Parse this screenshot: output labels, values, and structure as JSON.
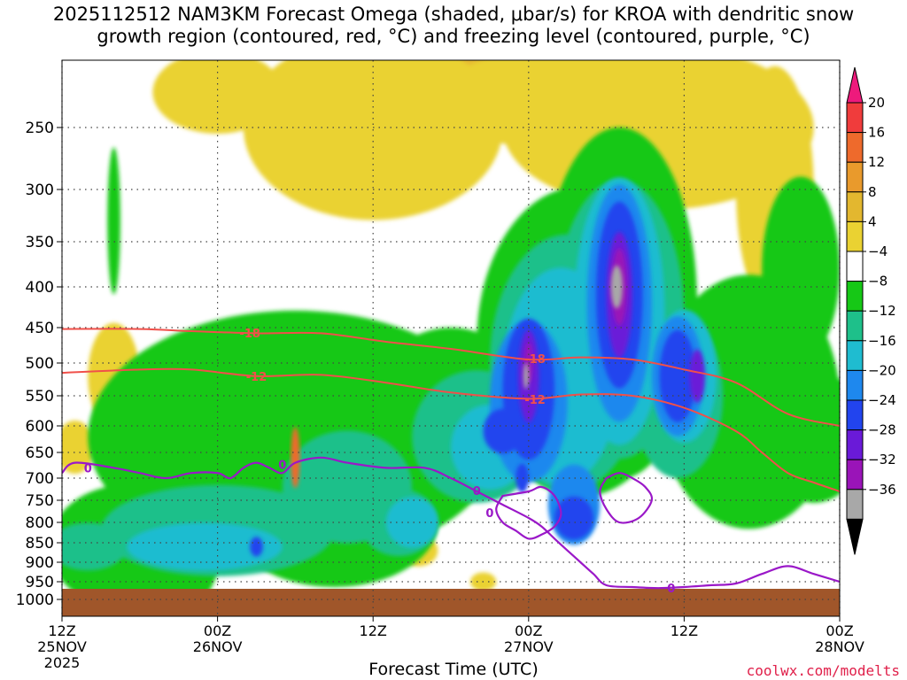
{
  "chart_data": {
    "type": "heatmap",
    "title_line1": "2025112512 NAM3KM Forecast Omega (shaded, μbar/s) for KROA with dendritic snow",
    "title_line2": "growth region (contoured, red, °C) and freezing level (contoured, purple, °C)",
    "xlabel": "Forecast Time (UTC)",
    "ylabel": "",
    "x_range_hours": [
      0,
      60
    ],
    "x_ticks": [
      {
        "hour": 0,
        "label1": "12Z",
        "label2": "25NOV",
        "label3": "2025"
      },
      {
        "hour": 12,
        "label1": "00Z",
        "label2": "26NOV",
        "label3": ""
      },
      {
        "hour": 24,
        "label1": "12Z",
        "label2": "",
        "label3": ""
      },
      {
        "hour": 36,
        "label1": "00Z",
        "label2": "27NOV",
        "label3": ""
      },
      {
        "hour": 48,
        "label1": "12Z",
        "label2": "",
        "label3": ""
      },
      {
        "hour": 60,
        "label1": "00Z",
        "label2": "28NOV",
        "label3": ""
      }
    ],
    "y_range_hpa": [
      200,
      1050
    ],
    "y_ticks": [
      250,
      300,
      350,
      400,
      450,
      500,
      550,
      600,
      650,
      700,
      750,
      800,
      850,
      900,
      950,
      1000
    ],
    "y_tick_labels": [
      "250",
      "300",
      "350",
      "400",
      "450",
      "500",
      "550",
      "600",
      "650",
      "700",
      "750",
      "800",
      "850",
      "900",
      "950",
      "1000"
    ],
    "colorbar": {
      "labels": [
        "20",
        "16",
        "12",
        "8",
        "4",
        "−4",
        "−8",
        "−12",
        "−16",
        "−20",
        "−24",
        "−28",
        "−32",
        "−36"
      ],
      "levels": [
        20,
        16,
        12,
        8,
        4,
        -4,
        -8,
        -12,
        -16,
        -20,
        -24,
        -28,
        -32,
        -36
      ],
      "colors": [
        "#f03c3c",
        "#ee6a2c",
        "#e99a2c",
        "#e3b72f",
        "#ead232",
        "#ffffff",
        "#16c816",
        "#1ec08a",
        "#1fbcd0",
        "#1e88ee",
        "#2244ee",
        "#6a1ad8",
        "#9a14b8",
        "#a8a8a8",
        "#000000"
      ],
      "top_color": "#ee1a7c"
    },
    "omega_shading": [
      {
        "level": 8,
        "color": "#e6b830",
        "blobs": [
          [
            34.5,
            210,
            4.5,
            55
          ],
          [
            22.5,
            225,
            2,
            40
          ],
          [
            40,
            215,
            3,
            40
          ],
          [
            54.5,
            300,
            1,
            60
          ]
        ]
      },
      {
        "level": 4,
        "color": "#ead232",
        "blobs": [
          [
            12,
            225,
            5,
            35
          ],
          [
            24,
            250,
            10,
            100
          ],
          [
            37,
            230,
            8,
            40
          ],
          [
            46,
            250,
            12,
            80
          ],
          [
            55,
            300,
            3,
            120
          ],
          [
            4,
            520,
            2,
            80
          ],
          [
            1,
            640,
            1.5,
            50
          ],
          [
            27.5,
            870,
            1.5,
            40
          ],
          [
            32.5,
            950,
            1,
            25
          ]
        ]
      },
      {
        "level": -4,
        "color": "#16c816",
        "blobs": [
          [
            40,
            470,
            8,
            200
          ],
          [
            43,
            420,
            6,
            200
          ],
          [
            30,
            560,
            6,
            120
          ],
          [
            18,
            620,
            16,
            220
          ],
          [
            53,
            560,
            7,
            200
          ],
          [
            58,
            620,
            4,
            120
          ],
          [
            5,
            860,
            6,
            150
          ],
          [
            10,
            700,
            3,
            250
          ],
          [
            21,
            800,
            8,
            150
          ],
          [
            4,
            330,
            0.5,
            70
          ],
          [
            57,
            380,
            3,
            100
          ]
        ]
      },
      {
        "level": -8,
        "color": "#1ec08a",
        "blobs": [
          [
            39,
            500,
            6,
            180
          ],
          [
            43,
            440,
            5,
            170
          ],
          [
            32,
            620,
            5,
            120
          ],
          [
            22,
            720,
            5,
            120
          ],
          [
            12,
            820,
            9,
            110
          ],
          [
            2,
            860,
            3,
            60
          ],
          [
            26,
            800,
            3,
            80
          ],
          [
            47.5,
            550,
            3.5,
            130
          ]
        ]
      },
      {
        "level": -12,
        "color": "#1fbcd0",
        "blobs": [
          [
            38.5,
            520,
            4.5,
            160
          ],
          [
            43,
            430,
            3.5,
            160
          ],
          [
            33,
            640,
            3,
            80
          ],
          [
            11,
            860,
            6,
            60
          ],
          [
            27,
            800,
            2,
            60
          ],
          [
            48,
            520,
            2.5,
            100
          ]
        ]
      },
      {
        "level": -16,
        "color": "#1e88ee",
        "blobs": [
          [
            36,
            560,
            3,
            130
          ],
          [
            43,
            420,
            2.5,
            140
          ],
          [
            39.5,
            760,
            2,
            90
          ],
          [
            47.5,
            520,
            2,
            90
          ]
        ]
      },
      {
        "level": -20,
        "color": "#2244ee",
        "blobs": [
          [
            36,
            540,
            2,
            110
          ],
          [
            43,
            410,
            1.8,
            110
          ],
          [
            39.5,
            790,
            1.5,
            50
          ],
          [
            47.5,
            520,
            1.4,
            70
          ],
          [
            15,
            860,
            0.5,
            25
          ],
          [
            34,
            610,
            1.5,
            40
          ],
          [
            35.5,
            700,
            0.5,
            30
          ]
        ]
      },
      {
        "level": -24,
        "color": "#6a1ad8",
        "blobs": [
          [
            43,
            410,
            1,
            75
          ],
          [
            36,
            520,
            0.8,
            70
          ],
          [
            49,
            520,
            0.6,
            40
          ]
        ]
      },
      {
        "level": -28,
        "color": "#9a14b8",
        "blobs": [
          [
            43,
            400,
            0.6,
            45
          ],
          [
            36,
            500,
            0.3,
            30
          ]
        ]
      },
      {
        "level": -32,
        "color": "#a8a8a8",
        "blobs": [
          [
            42.8,
            400,
            0.45,
            25
          ],
          [
            35.8,
            520,
            0.2,
            20
          ]
        ]
      },
      {
        "level": 16,
        "color": "#ee6a2c",
        "blobs": [
          [
            18,
            660,
            0.35,
            60
          ]
        ]
      }
    ],
    "dendritic_contours": [
      {
        "label": "-18",
        "label_at_hour": 14.5,
        "hours": [
          0,
          6,
          10,
          15,
          20,
          25,
          30,
          36,
          40,
          44,
          48,
          52,
          56,
          60
        ],
        "hpa": [
          452,
          452,
          455,
          458,
          458,
          470,
          480,
          495,
          492,
          495,
          510,
          530,
          580,
          600
        ]
      },
      {
        "label": "-12",
        "label_at_hour": 15,
        "hours": [
          0,
          6,
          10,
          15,
          20,
          25,
          30,
          36,
          40,
          44,
          48,
          52,
          54,
          56,
          58,
          60
        ],
        "hpa": [
          515,
          510,
          510,
          520,
          518,
          530,
          545,
          555,
          548,
          550,
          570,
          610,
          650,
          690,
          710,
          730
        ]
      }
    ],
    "freezing_level": {
      "label": "0",
      "main_hours": [
        0,
        1,
        4,
        6,
        8,
        10,
        12,
        13,
        14,
        15,
        16,
        17,
        18,
        20,
        22,
        25,
        28,
        30,
        32,
        34,
        36,
        37,
        38,
        39,
        40,
        41,
        42,
        44,
        46,
        48,
        50,
        52,
        54,
        56,
        58,
        60
      ],
      "main_hpa": [
        690,
        670,
        680,
        690,
        700,
        690,
        690,
        700,
        680,
        670,
        680,
        690,
        670,
        660,
        670,
        680,
        680,
        700,
        730,
        760,
        790,
        810,
        840,
        870,
        900,
        930,
        960,
        965,
        968,
        965,
        960,
        955,
        930,
        910,
        930,
        950
      ],
      "loop_hours": [
        34,
        36,
        37,
        38,
        38.5,
        38,
        37,
        36,
        35,
        34,
        33.5,
        34
      ],
      "loop_hpa": [
        740,
        730,
        720,
        740,
        780,
        810,
        830,
        840,
        820,
        800,
        770,
        740
      ],
      "loop2_hours": [
        42,
        43,
        44,
        45,
        45.5,
        44.5,
        43,
        42,
        41.5,
        42
      ],
      "loop2_hpa": [
        700,
        690,
        700,
        720,
        750,
        790,
        800,
        770,
        730,
        700
      ],
      "labels": [
        {
          "hour": 2,
          "hpa": 680
        },
        {
          "hour": 17,
          "hpa": 673
        },
        {
          "hour": 32,
          "hpa": 728
        },
        {
          "hour": 33,
          "hpa": 778
        },
        {
          "hour": 47,
          "hpa": 968
        }
      ]
    },
    "terrain": {
      "color": "#a0562a",
      "top_hpa": 970
    }
  },
  "x_axis_title": "Forecast Time (UTC)",
  "credit": "coolwx.com/modelts",
  "colors": {
    "grid": "#444444",
    "dendritic": "#f0504a",
    "freezing": "#9a18c8",
    "terrain": "#a0562a"
  }
}
